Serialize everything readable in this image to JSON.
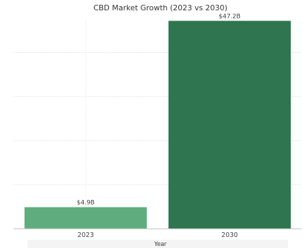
{
  "chart_data": {
    "type": "bar",
    "title": "CBD Market Growth (2023 vs 2030)",
    "xlabel": "Year",
    "ylabel": "",
    "categories": [
      "2023",
      "2030"
    ],
    "values": [
      4.9,
      47.2
    ],
    "data_labels": [
      "$4.9B",
      "$47.2B"
    ],
    "ylim": [
      0,
      48.5
    ],
    "grid": true,
    "bar_colors": [
      "#5fad7e",
      "#2e7550"
    ]
  }
}
